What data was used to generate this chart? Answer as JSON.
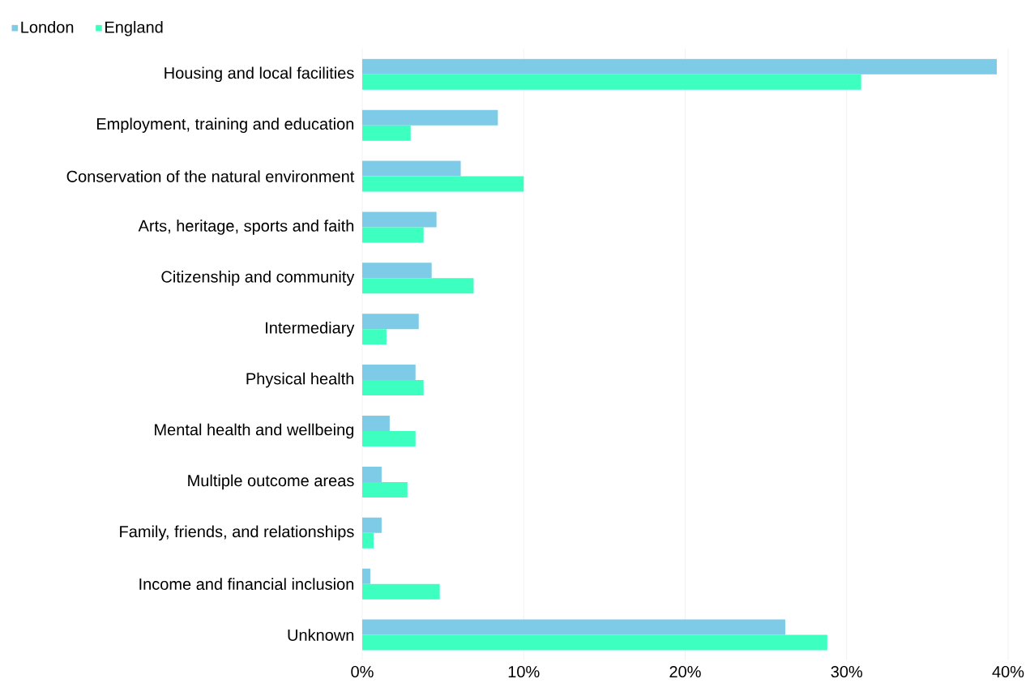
{
  "chart_data": {
    "type": "bar",
    "orientation": "horizontal",
    "categories": [
      "Housing and local facilities",
      "Employment, training and education",
      "Conservation of the natural environment",
      "Arts, heritage, sports and faith",
      "Citizenship and community",
      "Intermediary",
      "Physical health",
      "Mental health and wellbeing",
      "Multiple outcome areas",
      "Family, friends, and relationships",
      "Income and financial inclusion",
      "Unknown"
    ],
    "series": [
      {
        "name": "London",
        "color": "#7ecbe8",
        "values": [
          39.3,
          8.4,
          6.1,
          4.6,
          4.3,
          3.5,
          3.3,
          1.7,
          1.2,
          1.2,
          0.5,
          26.2
        ]
      },
      {
        "name": "England",
        "color": "#3dffc0",
        "values": [
          30.9,
          3.0,
          10.0,
          3.8,
          6.9,
          1.5,
          3.8,
          3.3,
          2.8,
          0.7,
          4.8,
          28.8
        ]
      }
    ],
    "xlim": [
      0,
      40
    ],
    "xticks": [
      {
        "value": 0,
        "label": "0%"
      },
      {
        "value": 10,
        "label": "10%"
      },
      {
        "value": 20,
        "label": "20%"
      },
      {
        "value": 30,
        "label": "30%"
      },
      {
        "value": 40,
        "label": "40%"
      }
    ],
    "grid": "x",
    "legend": "top left"
  }
}
